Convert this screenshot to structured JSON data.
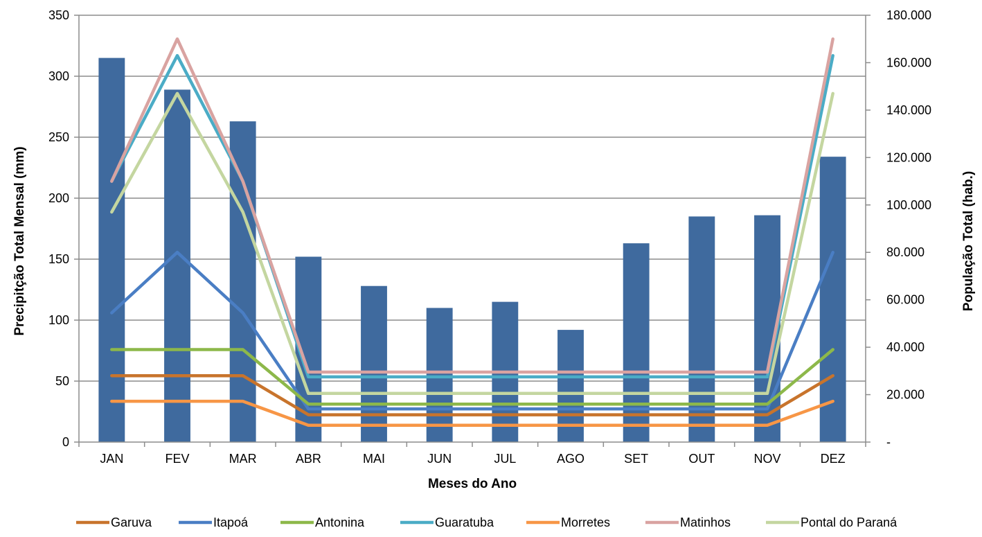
{
  "chart_data": {
    "type": "bar",
    "categories": [
      "JAN",
      "FEV",
      "MAR",
      "ABR",
      "MAI",
      "JUN",
      "JUL",
      "AGO",
      "SET",
      "OUT",
      "NOV",
      "DEZ"
    ],
    "xlabel": "Meses do Ano",
    "ylabel": "Precipitção Total Mensal (mm)",
    "y2label": "População  Total  (hab.)",
    "ylim": [
      0,
      350
    ],
    "yticks": [
      0,
      50,
      100,
      150,
      200,
      250,
      300,
      350
    ],
    "yticks_text": [
      "0",
      "50",
      "100",
      "150",
      "200",
      "250",
      "300",
      "350"
    ],
    "y2lim": [
      0,
      180000
    ],
    "y2ticks": [
      0,
      20000,
      40000,
      60000,
      80000,
      100000,
      120000,
      140000,
      160000,
      180000
    ],
    "y2ticks_text": [
      "-",
      "20.000",
      "40.000",
      "60.000",
      "80.000",
      "100.000",
      "120.000",
      "140.000",
      "160.000",
      "180.000"
    ],
    "grid": true,
    "legend_position": "bottom",
    "bars": {
      "axis": "left",
      "color": "#3f6a9e",
      "values": [
        315,
        289,
        263,
        152,
        128,
        110,
        115,
        92,
        163,
        185,
        186,
        234
      ]
    },
    "series": [
      {
        "name": "Garuva",
        "axis": "right",
        "color": "#c8742c",
        "values": [
          28000,
          28000,
          28000,
          11500,
          11500,
          11500,
          11500,
          11500,
          11500,
          11500,
          11500,
          28000
        ]
      },
      {
        "name": "Itapoá",
        "axis": "right",
        "color": "#4a7ec4",
        "values": [
          54500,
          80000,
          54500,
          14000,
          14000,
          14000,
          14000,
          14000,
          14000,
          14000,
          14000,
          80000
        ]
      },
      {
        "name": "Antonina",
        "axis": "right",
        "color": "#8db84a",
        "values": [
          39000,
          39000,
          39000,
          16000,
          16000,
          16000,
          16000,
          16000,
          16000,
          16000,
          16000,
          39000
        ]
      },
      {
        "name": "Guaratuba",
        "axis": "right",
        "color": "#4bacc6",
        "values": [
          110000,
          163000,
          110000,
          27500,
          27500,
          27500,
          27500,
          27500,
          27500,
          27500,
          27500,
          163000
        ]
      },
      {
        "name": "Morretes",
        "axis": "right",
        "color": "#f79646",
        "values": [
          17200,
          17200,
          17200,
          7100,
          7100,
          7100,
          7100,
          7100,
          7100,
          7100,
          7100,
          17200
        ]
      },
      {
        "name": "Matinhos",
        "axis": "right",
        "color": "#d9a3a1",
        "values": [
          110000,
          170000,
          110000,
          29500,
          29500,
          29500,
          29500,
          29500,
          29500,
          29500,
          29500,
          170000
        ]
      },
      {
        "name": "Pontal do Paraná",
        "axis": "right",
        "color": "#c4d6a0",
        "values": [
          97000,
          147000,
          97000,
          20500,
          20500,
          20500,
          20500,
          20500,
          20500,
          20500,
          20500,
          147000
        ]
      }
    ]
  }
}
